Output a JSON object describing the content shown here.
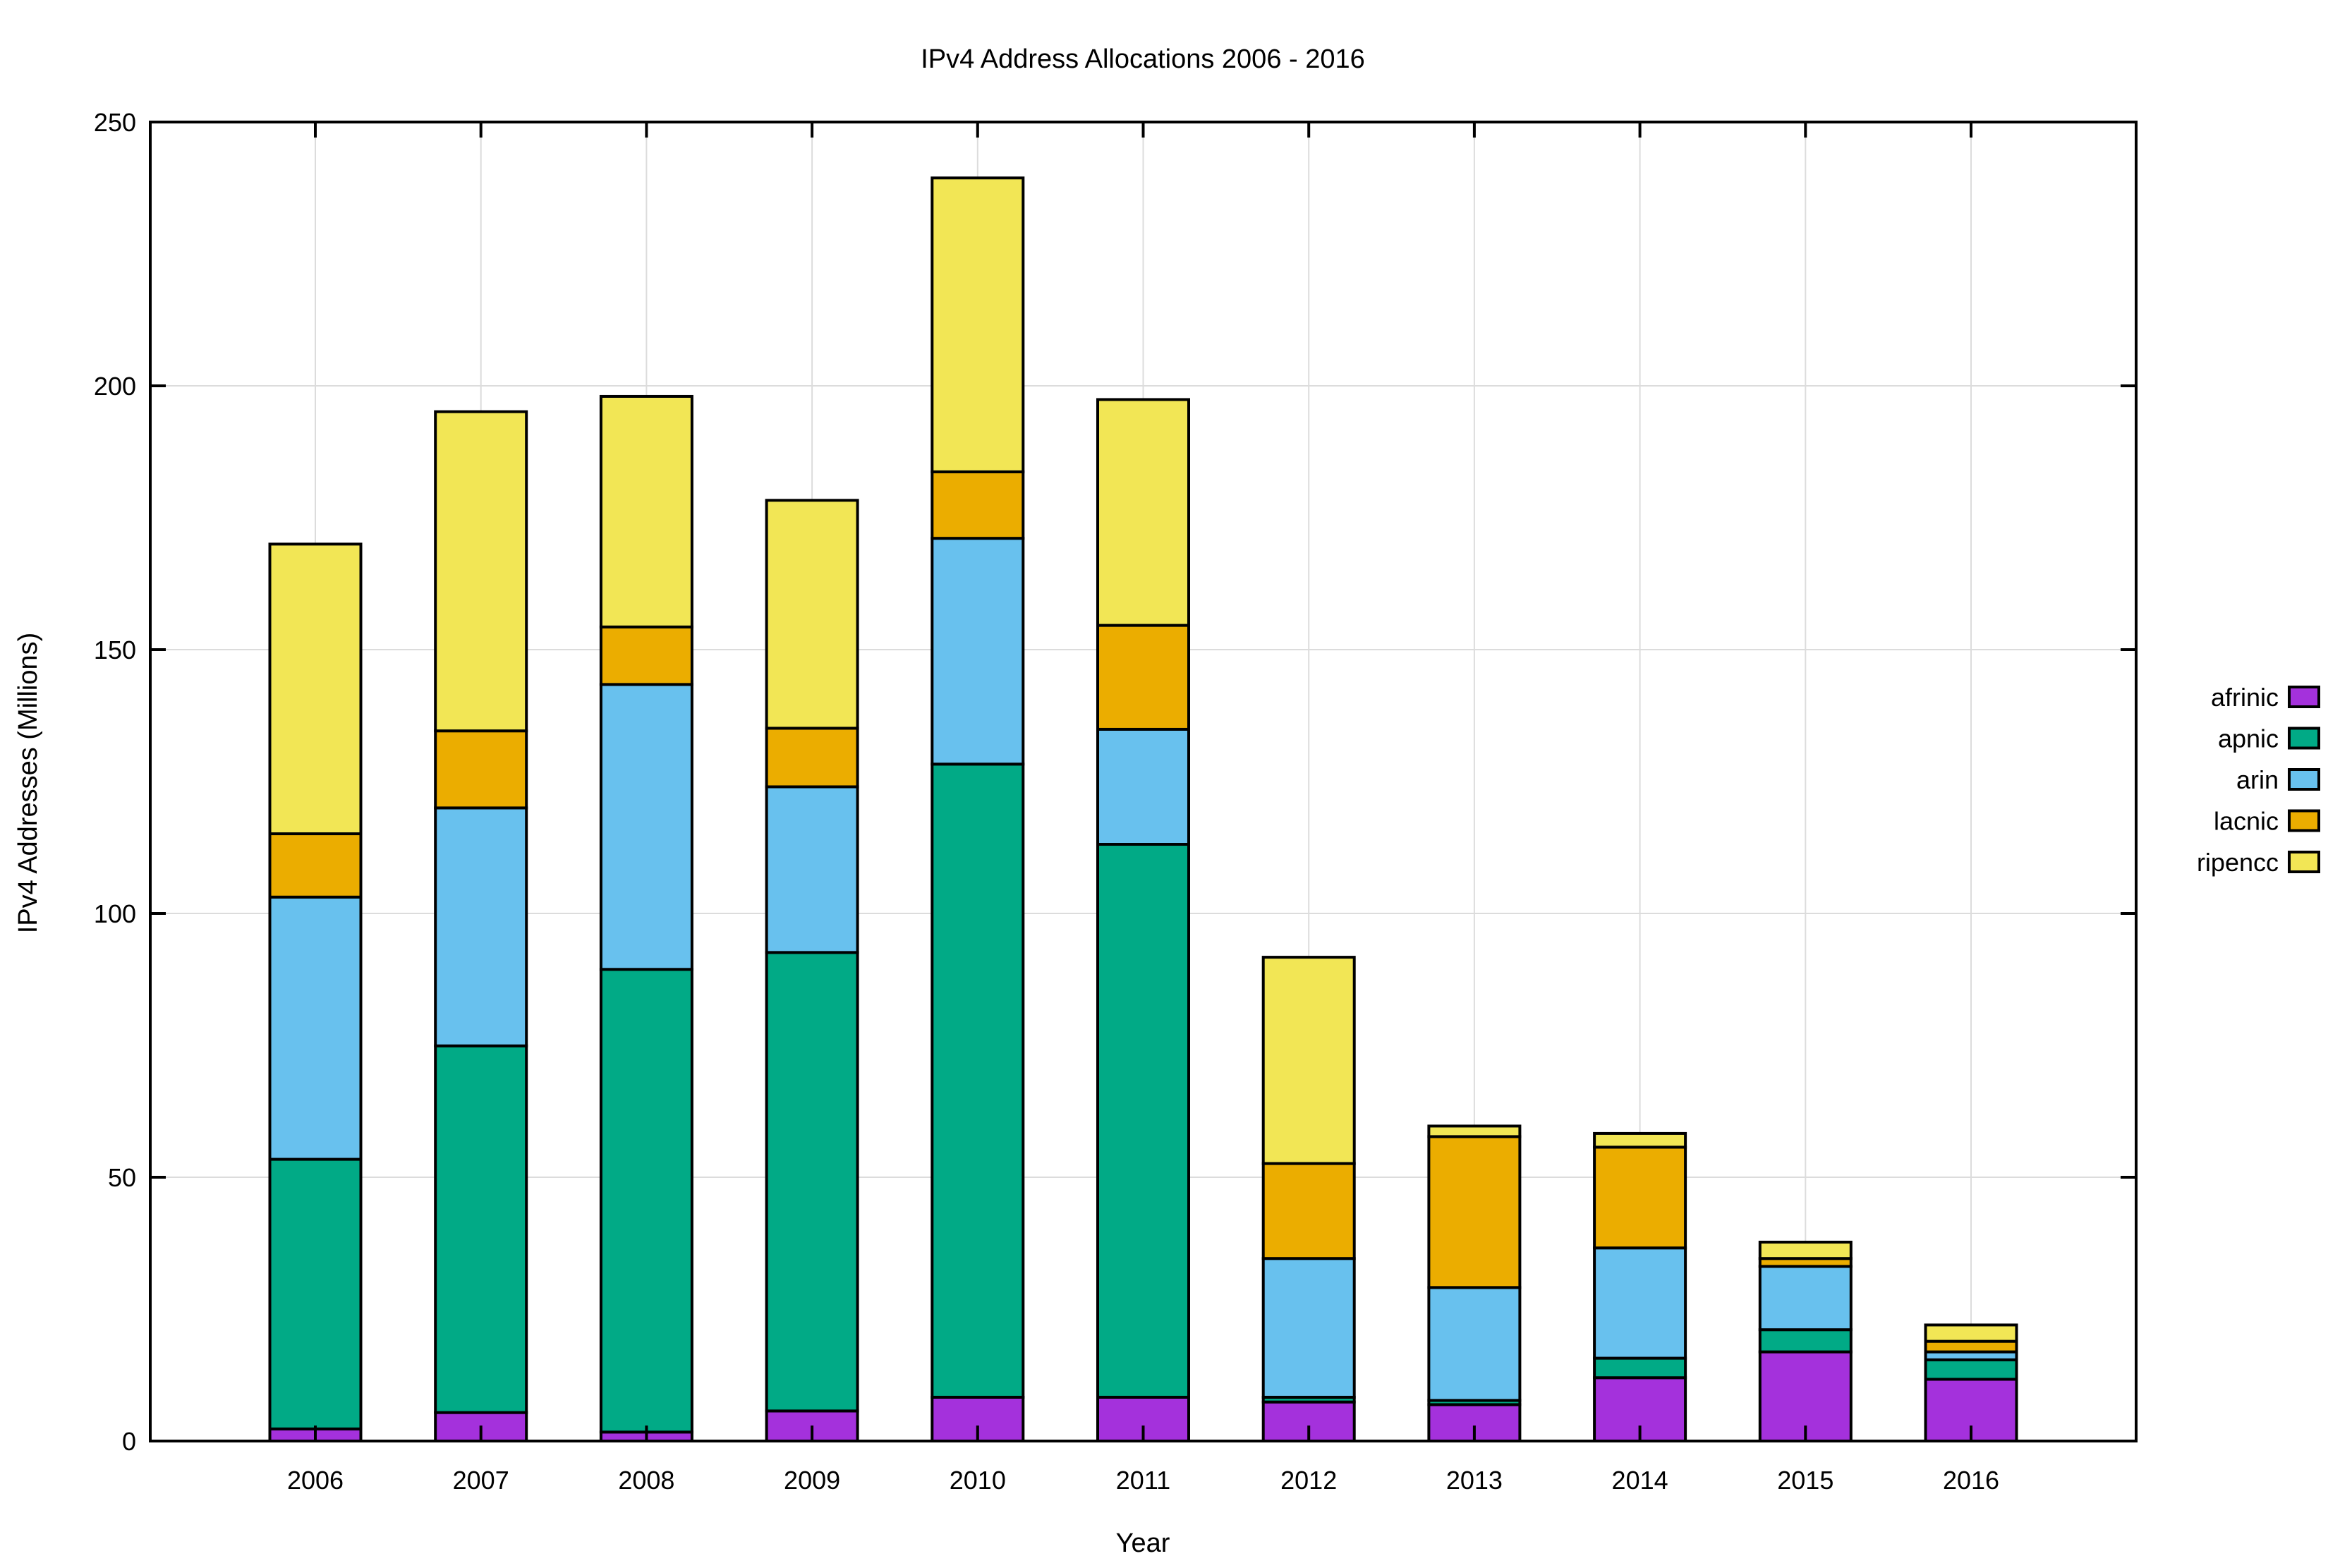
{
  "chart_data": {
    "type": "bar",
    "stacked": true,
    "title": "IPv4 Address Allocations 2006 - 2016",
    "xlabel": "Year",
    "ylabel": "IPv4 Addresses (Millions)",
    "ylim": [
      0,
      250
    ],
    "yticks": [
      0,
      50,
      100,
      150,
      200,
      250
    ],
    "grid": true,
    "legend_position": "right",
    "categories": [
      "2006",
      "2007",
      "2008",
      "2009",
      "2010",
      "2011",
      "2012",
      "2013",
      "2014",
      "2015",
      "2016"
    ],
    "series": [
      {
        "name": "afrinic",
        "color": "#a431dc",
        "values": [
          2.3,
          5.4,
          1.7,
          5.7,
          8.3,
          8.3,
          7.4,
          6.9,
          12.0,
          16.9,
          11.7
        ]
      },
      {
        "name": "apnic",
        "color": "#01aa86",
        "values": [
          51.1,
          69.5,
          87.7,
          86.9,
          120.0,
          104.8,
          0.9,
          0.8,
          3.7,
          4.2,
          3.7
        ]
      },
      {
        "name": "arin",
        "color": "#68c1ee",
        "values": [
          49.7,
          45.1,
          54.0,
          31.4,
          42.8,
          21.8,
          26.3,
          21.4,
          20.9,
          12.0,
          1.5
        ]
      },
      {
        "name": "lacnic",
        "color": "#ebad00",
        "values": [
          12.0,
          14.6,
          10.9,
          11.1,
          12.6,
          19.7,
          18.0,
          28.6,
          19.1,
          1.5,
          2.0
        ]
      },
      {
        "name": "ripencc",
        "color": "#f2e655",
        "values": [
          54.9,
          60.5,
          43.7,
          43.2,
          55.7,
          42.8,
          39.1,
          2.0,
          2.6,
          3.1,
          3.1
        ]
      }
    ]
  }
}
